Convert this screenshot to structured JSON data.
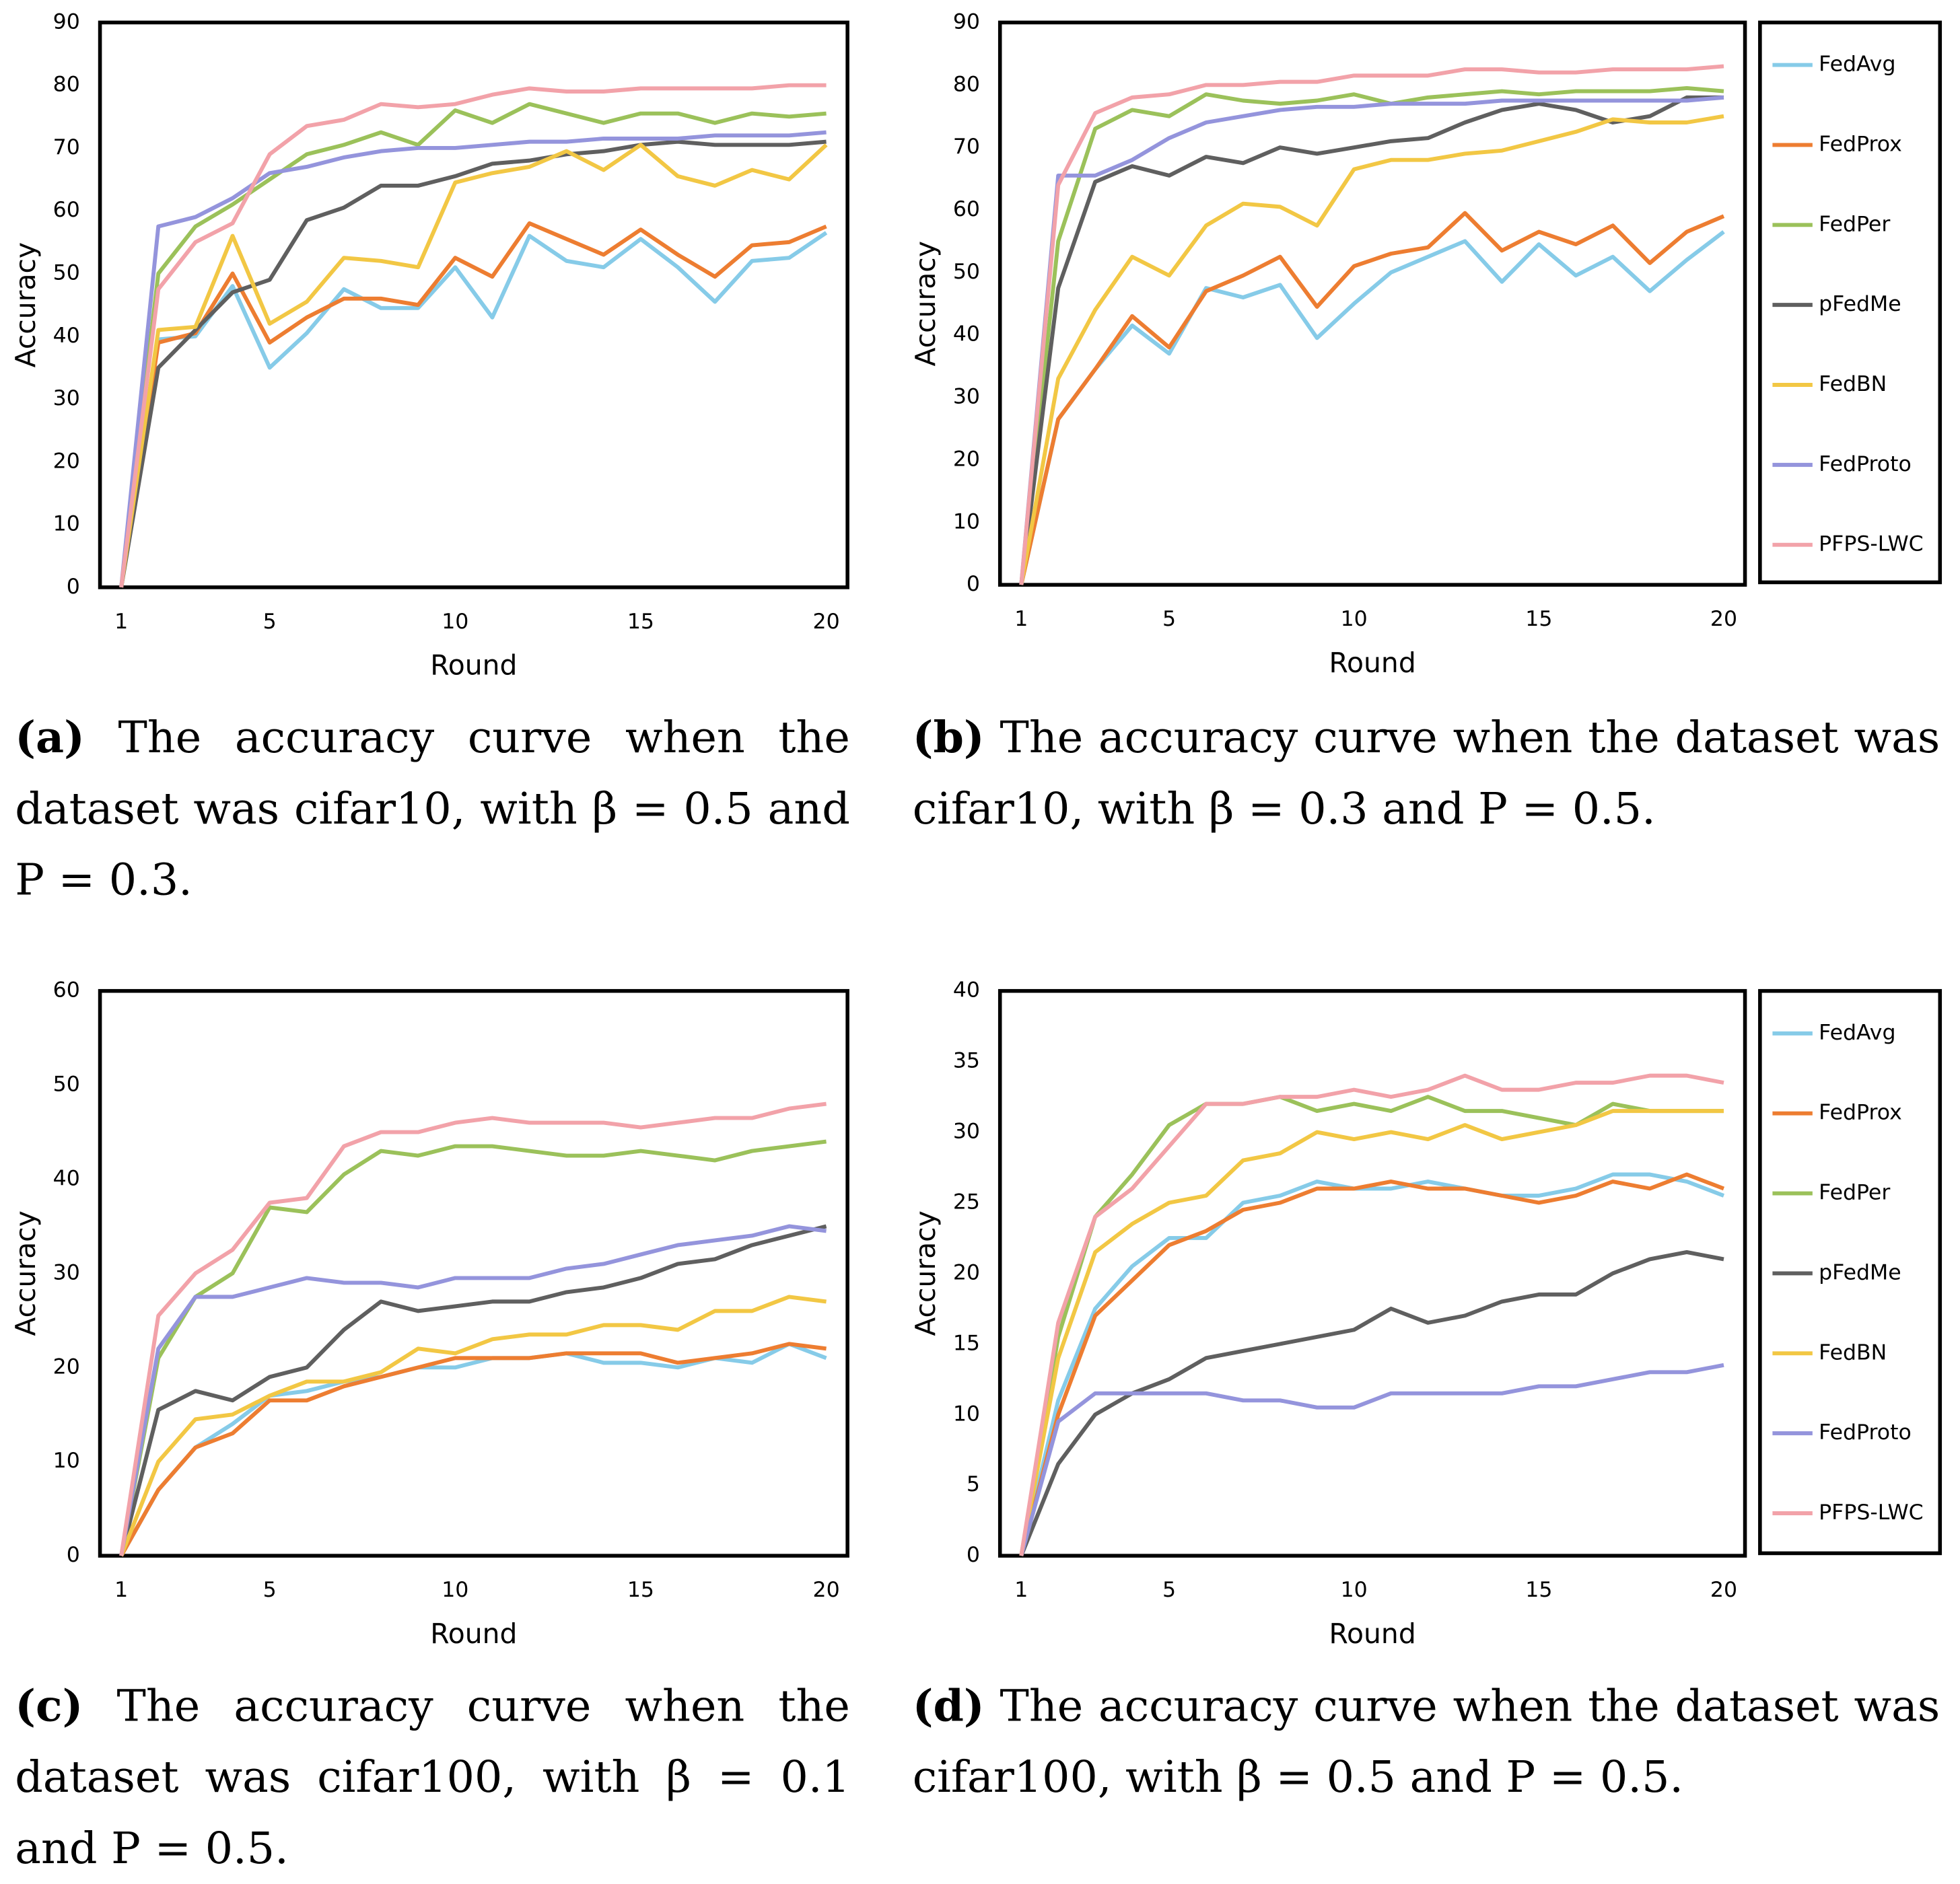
{
  "chart_data": [
    {
      "type": "line",
      "xlabel": "Round",
      "ylabel": "Accuracy",
      "x": [
        1,
        2,
        3,
        4,
        5,
        6,
        7,
        8,
        9,
        10,
        11,
        12,
        13,
        14,
        15,
        16,
        17,
        18,
        19,
        20
      ],
      "xlim": [
        1,
        20
      ],
      "xticks": [
        1,
        5,
        10,
        15,
        20
      ],
      "ylim": [
        0,
        90
      ],
      "yticks": [
        0,
        10,
        20,
        30,
        40,
        50,
        60,
        70,
        80,
        90
      ],
      "grid": false,
      "series": [
        {
          "color": "#86cbe8",
          "values": [
            0,
            39.5,
            40,
            48,
            35,
            40.5,
            47.5,
            44.5,
            44.5,
            51,
            43,
            56,
            52,
            51,
            55.5,
            51,
            45.5,
            52,
            52.5,
            56.5
          ]
        },
        {
          "color": "#ed7d31",
          "values": [
            0,
            39,
            40.5,
            50,
            39,
            43,
            46,
            46,
            45,
            52.5,
            49.5,
            58,
            55.5,
            53,
            57,
            53,
            49.5,
            54.5,
            55,
            57.5
          ]
        },
        {
          "color": "#9bc15a",
          "values": [
            0,
            50,
            57.5,
            61,
            65,
            69,
            70.5,
            72.5,
            70.5,
            76,
            74,
            77,
            75.5,
            74,
            75.5,
            75.5,
            74,
            75.5,
            75,
            75.5
          ]
        },
        {
          "color": "#5f5f5f",
          "values": [
            0,
            35,
            41,
            47,
            49,
            58.5,
            60.5,
            64,
            64,
            65.5,
            67.5,
            68,
            69,
            69.5,
            70.5,
            71,
            70.5,
            70.5,
            70.5,
            71
          ]
        },
        {
          "color": "#f2c744",
          "values": [
            0,
            41,
            41.5,
            56,
            42,
            45.5,
            52.5,
            52,
            51,
            64.5,
            66,
            67,
            69.5,
            66.5,
            70.5,
            65.5,
            64,
            66.5,
            65,
            70.5
          ]
        },
        {
          "color": "#9494dc",
          "values": [
            0,
            57.5,
            59,
            62,
            66,
            67,
            68.5,
            69.5,
            70,
            70,
            70.5,
            71,
            71,
            71.5,
            71.5,
            71.5,
            72,
            72,
            72,
            72.5
          ]
        },
        {
          "color": "#f2a2a9",
          "values": [
            0,
            47.5,
            55,
            58,
            69,
            73.5,
            74.5,
            77,
            76.5,
            77,
            78.5,
            79.5,
            79,
            79,
            79.5,
            79.5,
            79.5,
            79.5,
            80,
            80
          ]
        }
      ]
    },
    {
      "type": "line",
      "xlabel": "Round",
      "ylabel": "Accuracy",
      "legend": "right",
      "x": [
        1,
        2,
        3,
        4,
        5,
        6,
        7,
        8,
        9,
        10,
        11,
        12,
        13,
        14,
        15,
        16,
        17,
        18,
        19,
        20
      ],
      "xlim": [
        1,
        20
      ],
      "xticks": [
        1,
        5,
        10,
        15,
        20
      ],
      "ylim": [
        0,
        90
      ],
      "yticks": [
        0,
        10,
        20,
        30,
        40,
        50,
        60,
        70,
        80,
        90
      ],
      "grid": false,
      "series": [
        {
          "name": "FedAvg",
          "color": "#86cbe8",
          "values": [
            0,
            26.5,
            34.5,
            41.5,
            37,
            47.5,
            46,
            48,
            39.5,
            45,
            50,
            52.5,
            55,
            48.5,
            54.5,
            49.5,
            52.5,
            47,
            52,
            56.5
          ]
        },
        {
          "name": "FedProx",
          "color": "#ed7d31",
          "values": [
            0,
            26.5,
            34.5,
            43,
            38,
            47,
            49.5,
            52.5,
            44.5,
            51,
            53,
            54,
            59.5,
            53.5,
            56.5,
            54.5,
            57.5,
            51.5,
            56.5,
            59
          ]
        },
        {
          "name": "FedPer",
          "color": "#9bc15a",
          "values": [
            0,
            55,
            73,
            76,
            75,
            78.5,
            77.5,
            77,
            77.5,
            78.5,
            77,
            78,
            78.5,
            79,
            78.5,
            79,
            79,
            79,
            79.5,
            79
          ]
        },
        {
          "name": "pFedMe",
          "color": "#5f5f5f",
          "values": [
            0,
            47.5,
            64.5,
            67,
            65.5,
            68.5,
            67.5,
            70,
            69,
            70,
            71,
            71.5,
            74,
            76,
            77,
            76,
            74,
            75,
            78,
            78
          ]
        },
        {
          "name": "FedBN",
          "color": "#f2c744",
          "values": [
            0,
            33,
            44,
            52.5,
            49.5,
            57.5,
            61,
            60.5,
            57.5,
            66.5,
            68,
            68,
            69,
            69.5,
            71,
            72.5,
            74.5,
            74,
            74,
            75
          ]
        },
        {
          "name": "FedProto",
          "color": "#9494dc",
          "values": [
            0,
            65.5,
            65.5,
            68,
            71.5,
            74,
            75,
            76,
            76.5,
            76.5,
            77,
            77,
            77,
            77.5,
            77.5,
            77.5,
            77.5,
            77.5,
            77.5,
            78
          ]
        },
        {
          "name": "PFPS-LWC",
          "color": "#f2a2a9",
          "values": [
            0,
            64,
            75.5,
            78,
            78.5,
            80,
            80,
            80.5,
            80.5,
            81.5,
            81.5,
            81.5,
            82.5,
            82.5,
            82,
            82,
            82.5,
            82.5,
            82.5,
            83
          ]
        }
      ]
    },
    {
      "type": "line",
      "xlabel": "Round",
      "ylabel": "Accuracy",
      "x": [
        1,
        2,
        3,
        4,
        5,
        6,
        7,
        8,
        9,
        10,
        11,
        12,
        13,
        14,
        15,
        16,
        17,
        18,
        19,
        20
      ],
      "xlim": [
        1,
        20
      ],
      "xticks": [
        1,
        5,
        10,
        15,
        20
      ],
      "ylim": [
        0,
        60
      ],
      "yticks": [
        0,
        10,
        20,
        30,
        40,
        50,
        60
      ],
      "grid": false,
      "series": [
        {
          "color": "#86cbe8",
          "values": [
            0,
            7,
            11.5,
            14,
            17,
            17.5,
            18.5,
            19,
            20,
            20,
            21,
            21,
            21.5,
            20.5,
            20.5,
            20,
            21,
            20.5,
            22.5,
            21
          ]
        },
        {
          "color": "#ed7d31",
          "values": [
            0,
            7,
            11.5,
            13,
            16.5,
            16.5,
            18,
            19,
            20,
            21,
            21,
            21,
            21.5,
            21.5,
            21.5,
            20.5,
            21,
            21.5,
            22.5,
            22
          ]
        },
        {
          "color": "#9bc15a",
          "values": [
            0,
            21,
            27.5,
            30,
            37,
            36.5,
            40.5,
            43,
            42.5,
            43.5,
            43.5,
            43,
            42.5,
            42.5,
            43,
            42.5,
            42,
            43,
            43.5,
            44
          ]
        },
        {
          "color": "#5f5f5f",
          "values": [
            0,
            15.5,
            17.5,
            16.5,
            19,
            20,
            24,
            27,
            26,
            26.5,
            27,
            27,
            28,
            28.5,
            29.5,
            31,
            31.5,
            33,
            34,
            35
          ]
        },
        {
          "color": "#f2c744",
          "values": [
            0,
            10,
            14.5,
            15,
            17,
            18.5,
            18.5,
            19.5,
            22,
            21.5,
            23,
            23.5,
            23.5,
            24.5,
            24.5,
            24,
            26,
            26,
            27.5,
            27
          ]
        },
        {
          "color": "#9494dc",
          "values": [
            0,
            22,
            27.5,
            27.5,
            28.5,
            29.5,
            29,
            29,
            28.5,
            29.5,
            29.5,
            29.5,
            30.5,
            31,
            32,
            33,
            33.5,
            34,
            35,
            34.5
          ]
        },
        {
          "color": "#f2a2a9",
          "values": [
            0,
            25.5,
            30,
            32.5,
            37.5,
            38,
            43.5,
            45,
            45,
            46,
            46.5,
            46,
            46,
            46,
            45.5,
            46,
            46.5,
            46.5,
            47.5,
            48
          ]
        }
      ]
    },
    {
      "type": "line",
      "xlabel": "Round",
      "ylabel": "Accuracy",
      "legend": "right",
      "x": [
        1,
        2,
        3,
        4,
        5,
        6,
        7,
        8,
        9,
        10,
        11,
        12,
        13,
        14,
        15,
        16,
        17,
        18,
        19,
        20
      ],
      "xlim": [
        1,
        20
      ],
      "xticks": [
        1,
        5,
        10,
        15,
        20
      ],
      "ylim": [
        0,
        40
      ],
      "yticks": [
        0,
        5,
        10,
        15,
        20,
        25,
        30,
        35,
        40
      ],
      "grid": false,
      "series": [
        {
          "name": "FedAvg",
          "color": "#86cbe8",
          "values": [
            0,
            11,
            17.5,
            20.5,
            22.5,
            22.5,
            25,
            25.5,
            26.5,
            26,
            26,
            26.5,
            26,
            25.5,
            25.5,
            26,
            27,
            27,
            26.5,
            25.5
          ]
        },
        {
          "name": "FedProx",
          "color": "#ed7d31",
          "values": [
            0,
            10,
            17,
            19.5,
            22,
            23,
            24.5,
            25,
            26,
            26,
            26.5,
            26,
            26,
            25.5,
            25,
            25.5,
            26.5,
            26,
            27,
            26
          ]
        },
        {
          "name": "FedPer",
          "color": "#9bc15a",
          "values": [
            0,
            15.5,
            24,
            27,
            30.5,
            32,
            32,
            32.5,
            31.5,
            32,
            31.5,
            32.5,
            31.5,
            31.5,
            31,
            30.5,
            32,
            31.5,
            31.5,
            31.5
          ]
        },
        {
          "name": "pFedMe",
          "color": "#5f5f5f",
          "values": [
            0,
            6.5,
            10,
            11.5,
            12.5,
            14,
            14.5,
            15,
            15.5,
            16,
            17.5,
            16.5,
            17,
            18,
            18.5,
            18.5,
            20,
            21,
            21.5,
            21
          ]
        },
        {
          "name": "FedBN",
          "color": "#f2c744",
          "values": [
            0,
            14,
            21.5,
            23.5,
            25,
            25.5,
            28,
            28.5,
            30,
            29.5,
            30,
            29.5,
            30.5,
            29.5,
            30,
            30.5,
            31.5,
            31.5,
            31.5,
            31.5
          ]
        },
        {
          "name": "FedProto",
          "color": "#9494dc",
          "values": [
            0,
            9.5,
            11.5,
            11.5,
            11.5,
            11.5,
            11,
            11,
            10.5,
            10.5,
            11.5,
            11.5,
            11.5,
            11.5,
            12,
            12,
            12.5,
            13,
            13,
            13.5
          ]
        },
        {
          "name": "PFPS-LWC",
          "color": "#f2a2a9",
          "values": [
            0,
            16.5,
            24,
            26,
            29,
            32,
            32,
            32.5,
            32.5,
            33,
            32.5,
            33,
            34,
            33,
            33,
            33.5,
            33.5,
            34,
            34,
            33.5
          ]
        }
      ]
    }
  ],
  "captions": [
    {
      "label": "(a)",
      "text": "The accuracy curve when the dataset was cifar10, with β = 0.5 and P = 0.3."
    },
    {
      "label": "(b)",
      "text": "The accuracy curve when the dataset was cifar10, with β = 0.3 and P = 0.5."
    },
    {
      "label": "(c)",
      "text": "The accuracy curve when the dataset was cifar100, with β = 0.1 and P = 0.5."
    },
    {
      "label": "(d)",
      "text": "The accuracy curve when the dataset was cifar100, with β = 0.5 and P = 0.5."
    }
  ]
}
